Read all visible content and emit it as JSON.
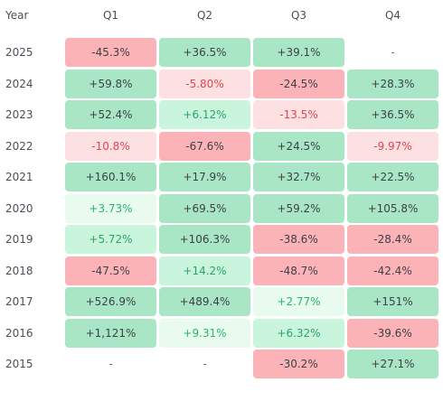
{
  "chart_data": {
    "type": "table",
    "headers": [
      "Year",
      "Q1",
      "Q2",
      "Q3",
      "Q4"
    ],
    "rows": [
      {
        "year": "2025",
        "cells": [
          {
            "text": "-45.3%",
            "tone": "strong-dn"
          },
          {
            "text": "+36.5%",
            "tone": "strong-up"
          },
          {
            "text": "+39.1%",
            "tone": "strong-up"
          },
          {
            "text": "-",
            "tone": "none"
          }
        ]
      },
      {
        "year": "2024",
        "cells": [
          {
            "text": "+59.8%",
            "tone": "strong-up"
          },
          {
            "text": "-5.80%",
            "tone": "weak-dn"
          },
          {
            "text": "-24.5%",
            "tone": "strong-dn"
          },
          {
            "text": "+28.3%",
            "tone": "strong-up"
          }
        ]
      },
      {
        "year": "2023",
        "cells": [
          {
            "text": "+52.4%",
            "tone": "strong-up"
          },
          {
            "text": "+6.12%",
            "tone": "weak-up"
          },
          {
            "text": "-13.5%",
            "tone": "weak-dn"
          },
          {
            "text": "+36.5%",
            "tone": "strong-up"
          }
        ]
      },
      {
        "year": "2022",
        "cells": [
          {
            "text": "-10.8%",
            "tone": "weak-dn"
          },
          {
            "text": "-67.6%",
            "tone": "strong-dn"
          },
          {
            "text": "+24.5%",
            "tone": "strong-up"
          },
          {
            "text": "-9.97%",
            "tone": "weak-dn"
          }
        ]
      },
      {
        "year": "2021",
        "cells": [
          {
            "text": "+160.1%",
            "tone": "strong-up"
          },
          {
            "text": "+17.9%",
            "tone": "strong-up"
          },
          {
            "text": "+32.7%",
            "tone": "strong-up"
          },
          {
            "text": "+22.5%",
            "tone": "strong-up"
          }
        ]
      },
      {
        "year": "2020",
        "cells": [
          {
            "text": "+3.73%",
            "tone": "faint-up"
          },
          {
            "text": "+69.5%",
            "tone": "strong-up"
          },
          {
            "text": "+59.2%",
            "tone": "strong-up"
          },
          {
            "text": "+105.8%",
            "tone": "strong-up"
          }
        ]
      },
      {
        "year": "2019",
        "cells": [
          {
            "text": "+5.72%",
            "tone": "weak-up"
          },
          {
            "text": "+106.3%",
            "tone": "strong-up"
          },
          {
            "text": "-38.6%",
            "tone": "strong-dn"
          },
          {
            "text": "-28.4%",
            "tone": "strong-dn"
          }
        ]
      },
      {
        "year": "2018",
        "cells": [
          {
            "text": "-47.5%",
            "tone": "strong-dn"
          },
          {
            "text": "+14.2%",
            "tone": "weak-up"
          },
          {
            "text": "-48.7%",
            "tone": "strong-dn"
          },
          {
            "text": "-42.4%",
            "tone": "strong-dn"
          }
        ]
      },
      {
        "year": "2017",
        "cells": [
          {
            "text": "+526.9%",
            "tone": "strong-up"
          },
          {
            "text": "+489.4%",
            "tone": "strong-up"
          },
          {
            "text": "+2.77%",
            "tone": "faint-up"
          },
          {
            "text": "+151%",
            "tone": "strong-up"
          }
        ]
      },
      {
        "year": "2016",
        "cells": [
          {
            "text": "+1,121%",
            "tone": "strong-up"
          },
          {
            "text": "+9.31%",
            "tone": "faint-up"
          },
          {
            "text": "+6.32%",
            "tone": "weak-up"
          },
          {
            "text": "-39.6%",
            "tone": "strong-dn"
          }
        ]
      },
      {
        "year": "2015",
        "cells": [
          {
            "text": "-",
            "tone": "none"
          },
          {
            "text": "-",
            "tone": "none"
          },
          {
            "text": "-30.2%",
            "tone": "strong-dn"
          },
          {
            "text": "+27.1%",
            "tone": "strong-up"
          }
        ]
      }
    ]
  }
}
